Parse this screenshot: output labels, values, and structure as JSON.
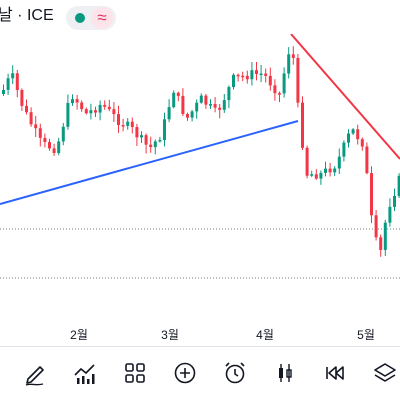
{
  "header": {
    "symbol_title": "날 · ICE",
    "status_dot_color": "#089981",
    "status_wave_glyph": "≈"
  },
  "colors": {
    "up_candle": "#089981",
    "down_candle": "#f23645",
    "trendline_blue": "#2962ff",
    "trendline_red": "#f23645"
  },
  "x_axis": {
    "labels": [
      "2월",
      "3월",
      "4월",
      "5월"
    ]
  },
  "toolbar": {
    "items": [
      {
        "icon": "pen-icon"
      },
      {
        "icon": "chart-indicators-icon"
      },
      {
        "icon": "grid-icon"
      },
      {
        "icon": "plus-circle-icon"
      },
      {
        "icon": "alarm-clock-icon"
      },
      {
        "icon": "candlestick-icon"
      },
      {
        "icon": "replay-icon"
      },
      {
        "icon": "layers-icon"
      }
    ]
  }
}
